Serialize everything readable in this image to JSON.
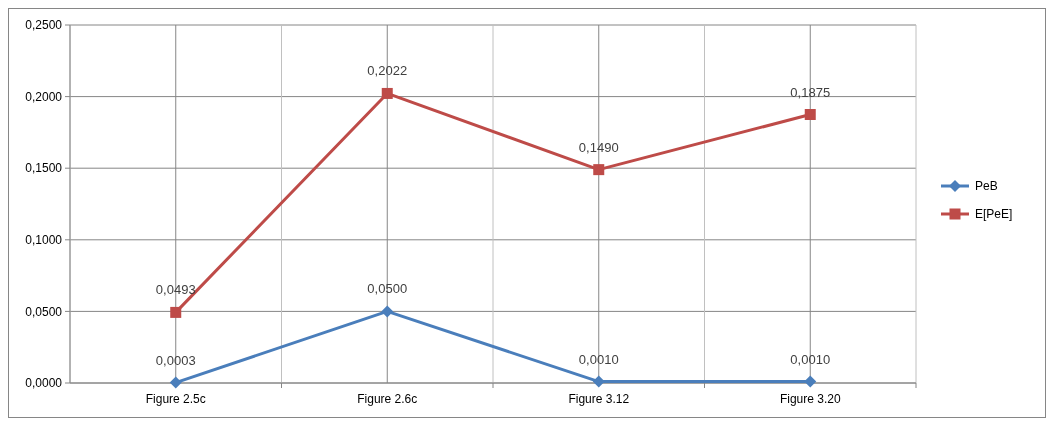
{
  "chart_data": {
    "type": "line",
    "categories": [
      "Figure 2.5c",
      "Figure 2.6c",
      "Figure 3.12",
      "Figure 3.20"
    ],
    "series": [
      {
        "name": "PeB",
        "color": "#4a7ebb",
        "marker": "diamond",
        "values": [
          0.0003,
          0.05,
          0.001,
          0.001
        ],
        "value_labels": [
          "0,0003",
          "0,0500",
          "0,0010",
          "0,0010"
        ]
      },
      {
        "name": "E[PeE]",
        "color": "#be4b48",
        "marker": "square",
        "values": [
          0.0493,
          0.2022,
          0.149,
          0.1875
        ],
        "value_labels": [
          "0,0493",
          "0,2022",
          "0,1490",
          "0,1875"
        ]
      }
    ],
    "ylim": [
      0,
      0.25
    ],
    "yticks": [
      {
        "value": 0,
        "label": "0,0000"
      },
      {
        "value": 0.05,
        "label": "0,0500"
      },
      {
        "value": 0.1,
        "label": "0,1000"
      },
      {
        "value": 0.15,
        "label": "0,1500"
      },
      {
        "value": 0.2,
        "label": "0,2000"
      },
      {
        "value": 0.25,
        "label": "0,2500"
      }
    ],
    "grid": true,
    "legend": "right",
    "line_style": "solid"
  }
}
